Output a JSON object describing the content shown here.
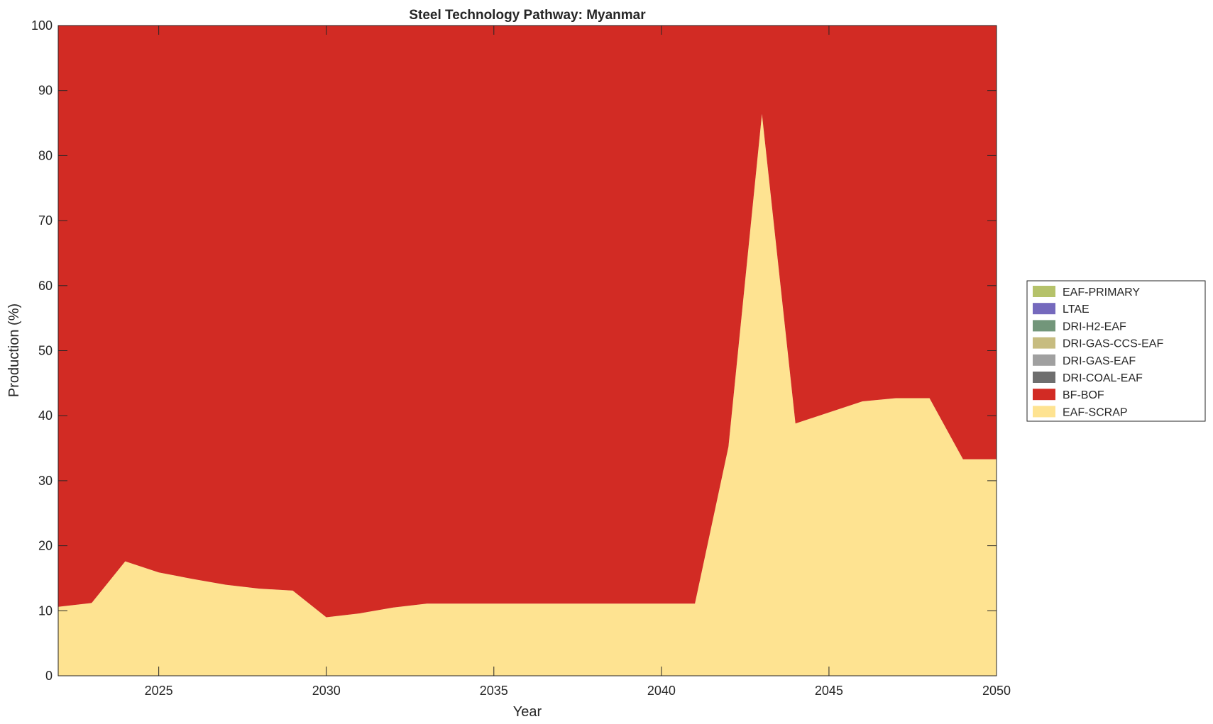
{
  "chart_data": {
    "type": "area",
    "stacked": true,
    "title": "Steel Technology Pathway: Myanmar",
    "xlabel": "Year",
    "ylabel": "Production (%)",
    "xlim": [
      2022,
      2050
    ],
    "ylim": [
      0,
      100
    ],
    "xticks": [
      2025,
      2030,
      2035,
      2040,
      2045,
      2050
    ],
    "yticks": [
      0,
      10,
      20,
      30,
      40,
      50,
      60,
      70,
      80,
      90,
      100
    ],
    "grid": false,
    "legend_position": "right",
    "x": [
      2022,
      2023,
      2024,
      2025,
      2026,
      2027,
      2028,
      2029,
      2030,
      2031,
      2032,
      2033,
      2034,
      2035,
      2036,
      2037,
      2038,
      2039,
      2040,
      2041,
      2042,
      2043,
      2044,
      2045,
      2046,
      2047,
      2048,
      2049,
      2050
    ],
    "series": [
      {
        "name": "EAF-SCRAP",
        "color": "#fee391",
        "values": [
          10.6,
          11.2,
          17.6,
          15.9,
          14.9,
          14.0,
          13.4,
          13.1,
          9.0,
          9.6,
          10.5,
          11.1,
          11.1,
          11.1,
          11.1,
          11.1,
          11.1,
          11.1,
          11.1,
          11.1,
          35.2,
          86.4,
          38.8,
          40.5,
          42.2,
          42.7,
          42.7,
          33.3,
          33.3
        ]
      },
      {
        "name": "BF-BOF",
        "color": "#d22b24",
        "values": [
          89.4,
          88.8,
          82.4,
          84.1,
          85.1,
          86.0,
          86.6,
          86.9,
          91.0,
          90.4,
          89.5,
          88.9,
          88.9,
          88.9,
          88.9,
          88.9,
          88.9,
          88.9,
          88.9,
          88.9,
          64.8,
          13.6,
          61.2,
          59.5,
          57.8,
          57.3,
          57.3,
          66.7,
          66.7
        ]
      },
      {
        "name": "DRI-COAL-EAF",
        "color": "#6e6e6e",
        "values": [
          0,
          0,
          0,
          0,
          0,
          0,
          0,
          0,
          0,
          0,
          0,
          0,
          0,
          0,
          0,
          0,
          0,
          0,
          0,
          0,
          0,
          0,
          0,
          0,
          0,
          0,
          0,
          0,
          0
        ]
      },
      {
        "name": "DRI-GAS-EAF",
        "color": "#a0a0a0",
        "values": [
          0,
          0,
          0,
          0,
          0,
          0,
          0,
          0,
          0,
          0,
          0,
          0,
          0,
          0,
          0,
          0,
          0,
          0,
          0,
          0,
          0,
          0,
          0,
          0,
          0,
          0,
          0,
          0,
          0
        ]
      },
      {
        "name": "DRI-GAS-CCS-EAF",
        "color": "#c7bc80",
        "values": [
          0,
          0,
          0,
          0,
          0,
          0,
          0,
          0,
          0,
          0,
          0,
          0,
          0,
          0,
          0,
          0,
          0,
          0,
          0,
          0,
          0,
          0,
          0,
          0,
          0,
          0,
          0,
          0,
          0
        ]
      },
      {
        "name": "DRI-H2-EAF",
        "color": "#72967a",
        "values": [
          0,
          0,
          0,
          0,
          0,
          0,
          0,
          0,
          0,
          0,
          0,
          0,
          0,
          0,
          0,
          0,
          0,
          0,
          0,
          0,
          0,
          0,
          0,
          0,
          0,
          0,
          0,
          0,
          0
        ]
      },
      {
        "name": "LTAE",
        "color": "#7569bd",
        "values": [
          0,
          0,
          0,
          0,
          0,
          0,
          0,
          0,
          0,
          0,
          0,
          0,
          0,
          0,
          0,
          0,
          0,
          0,
          0,
          0,
          0,
          0,
          0,
          0,
          0,
          0,
          0,
          0,
          0
        ]
      },
      {
        "name": "EAF-PRIMARY",
        "color": "#b5c26a",
        "values": [
          0,
          0,
          0,
          0,
          0,
          0,
          0,
          0,
          0,
          0,
          0,
          0,
          0,
          0,
          0,
          0,
          0,
          0,
          0,
          0,
          0,
          0,
          0,
          0,
          0,
          0,
          0,
          0,
          0
        ]
      }
    ],
    "legend_order": [
      "EAF-PRIMARY",
      "LTAE",
      "DRI-H2-EAF",
      "DRI-GAS-CCS-EAF",
      "DRI-GAS-EAF",
      "DRI-COAL-EAF",
      "BF-BOF",
      "EAF-SCRAP"
    ]
  }
}
